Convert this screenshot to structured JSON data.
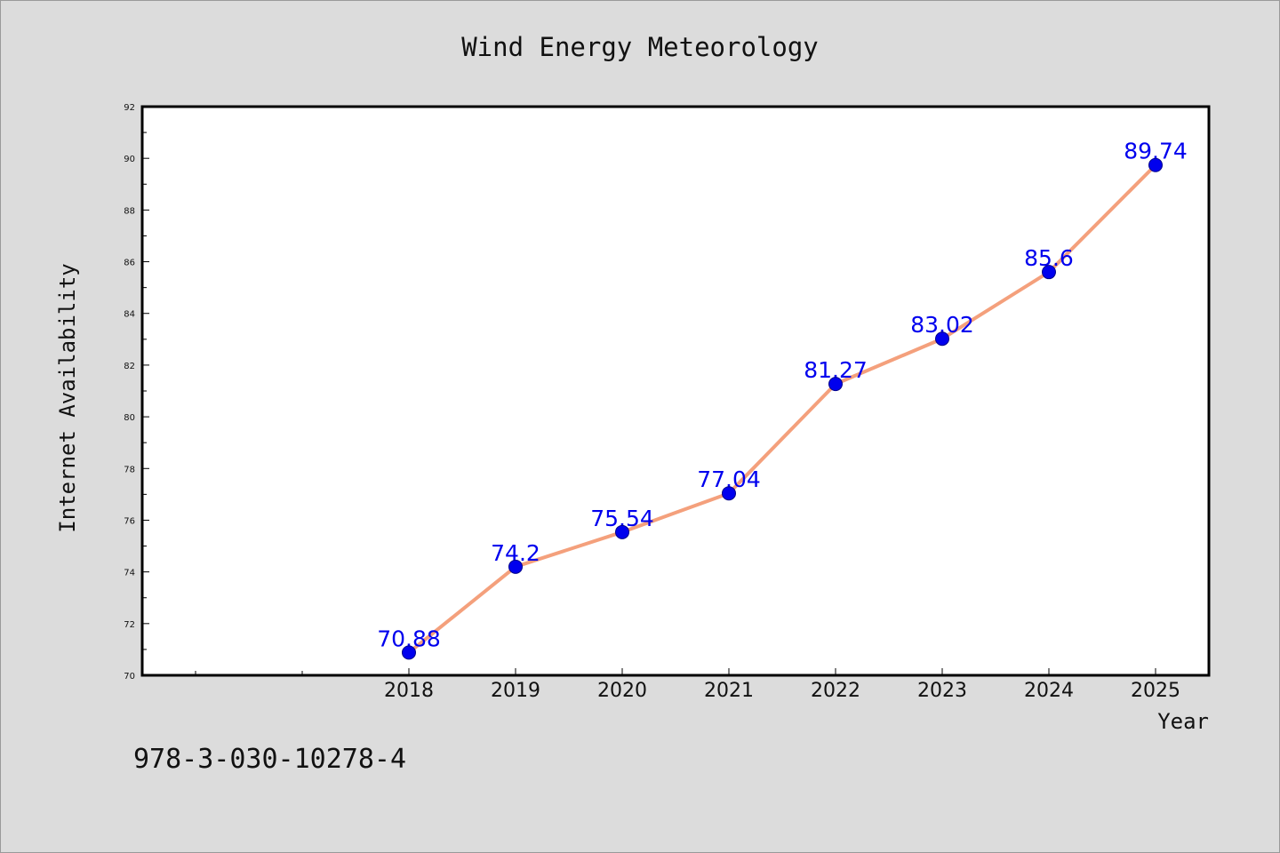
{
  "chart_data": {
    "type": "line",
    "title": "Wind Energy Meteorology",
    "xlabel": "Year",
    "ylabel": "Internet Availability",
    "x": [
      "2018",
      "2019",
      "2020",
      "2021",
      "2022",
      "2023",
      "2024",
      "2025"
    ],
    "series": [
      {
        "values": [
          70.88,
          74.2,
          75.54,
          77.04,
          81.27,
          83.02,
          85.6,
          89.74
        ],
        "data_labels": [
          "70.88",
          "74.2",
          "75.54",
          "77.04",
          "81.27",
          "83.02",
          "85.6",
          "89.74"
        ],
        "line_color": "#f4a07c",
        "marker_color": "#0000ee"
      }
    ],
    "ylim": [
      70,
      92
    ],
    "yticks": [
      "70",
      "72",
      "74",
      "76",
      "78",
      "80",
      "82",
      "84",
      "86",
      "88",
      "90",
      "92"
    ],
    "grid": false,
    "legend": "none",
    "data_label_color": "#0000ee"
  },
  "annotation": "978-3-030-10278-4",
  "colors": {
    "background": "#dcdcdc",
    "plot_background": "#ffffff",
    "axis": "#000000"
  }
}
